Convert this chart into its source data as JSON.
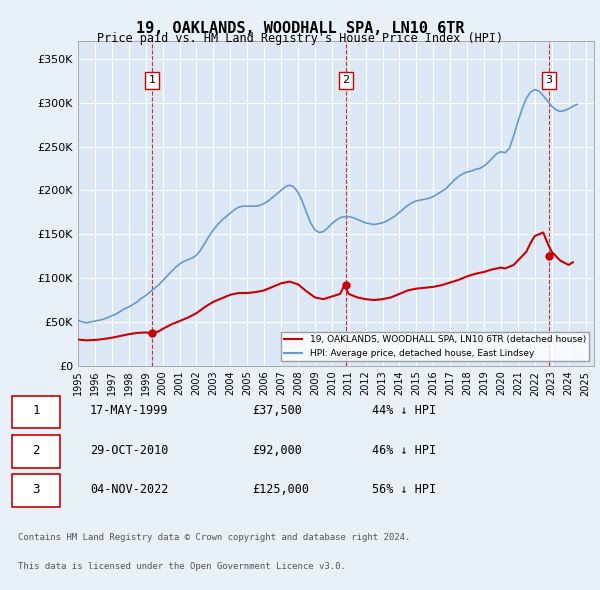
{
  "title": "19, OAKLANDS, WOODHALL SPA, LN10 6TR",
  "subtitle": "Price paid vs. HM Land Registry's House Price Index (HPI)",
  "background_color": "#e8f0f8",
  "plot_background": "#dce8f5",
  "legend_label_red": "19, OAKLANDS, WOODHALL SPA, LN10 6TR (detached house)",
  "legend_label_blue": "HPI: Average price, detached house, East Lindsey",
  "footer_line1": "Contains HM Land Registry data © Crown copyright and database right 2024.",
  "footer_line2": "This data is licensed under the Open Government Licence v3.0.",
  "table_rows": [
    {
      "num": 1,
      "date": "17-MAY-1999",
      "price": "£37,500",
      "pct": "44% ↓ HPI"
    },
    {
      "num": 2,
      "date": "29-OCT-2010",
      "price": "£92,000",
      "pct": "46% ↓ HPI"
    },
    {
      "num": 3,
      "date": "04-NOV-2022",
      "price": "£125,000",
      "pct": "56% ↓ HPI"
    }
  ],
  "sale_dates": [
    1999.38,
    2010.83,
    2022.84
  ],
  "sale_prices": [
    37500,
    92000,
    125000
  ],
  "sale_labels": [
    "1",
    "2",
    "3"
  ],
  "ylim": [
    0,
    370000
  ],
  "xlim_start": 1995.0,
  "xlim_end": 2025.5,
  "yticks": [
    0,
    50000,
    100000,
    150000,
    200000,
    250000,
    300000,
    350000
  ],
  "ytick_labels": [
    "£0",
    "£50K",
    "£100K",
    "£150K",
    "£200K",
    "£250K",
    "£300K",
    "£350K"
  ],
  "xticks": [
    1995,
    1996,
    1997,
    1998,
    1999,
    2000,
    2001,
    2002,
    2003,
    2004,
    2005,
    2006,
    2007,
    2008,
    2009,
    2010,
    2011,
    2012,
    2013,
    2014,
    2015,
    2016,
    2017,
    2018,
    2019,
    2020,
    2021,
    2022,
    2023,
    2024,
    2025
  ],
  "red_line_color": "#cc0000",
  "blue_line_color": "#6699cc",
  "vline_color": "#cc0000",
  "hpi_data": {
    "years": [
      1995.0,
      1995.25,
      1995.5,
      1995.75,
      1996.0,
      1996.25,
      1996.5,
      1996.75,
      1997.0,
      1997.25,
      1997.5,
      1997.75,
      1998.0,
      1998.25,
      1998.5,
      1998.75,
      1999.0,
      1999.25,
      1999.5,
      1999.75,
      2000.0,
      2000.25,
      2000.5,
      2000.75,
      2001.0,
      2001.25,
      2001.5,
      2001.75,
      2002.0,
      2002.25,
      2002.5,
      2002.75,
      2003.0,
      2003.25,
      2003.5,
      2003.75,
      2004.0,
      2004.25,
      2004.5,
      2004.75,
      2005.0,
      2005.25,
      2005.5,
      2005.75,
      2006.0,
      2006.25,
      2006.5,
      2006.75,
      2007.0,
      2007.25,
      2007.5,
      2007.75,
      2008.0,
      2008.25,
      2008.5,
      2008.75,
      2009.0,
      2009.25,
      2009.5,
      2009.75,
      2010.0,
      2010.25,
      2010.5,
      2010.75,
      2011.0,
      2011.25,
      2011.5,
      2011.75,
      2012.0,
      2012.25,
      2012.5,
      2012.75,
      2013.0,
      2013.25,
      2013.5,
      2013.75,
      2014.0,
      2014.25,
      2014.5,
      2014.75,
      2015.0,
      2015.25,
      2015.5,
      2015.75,
      2016.0,
      2016.25,
      2016.5,
      2016.75,
      2017.0,
      2017.25,
      2017.5,
      2017.75,
      2018.0,
      2018.25,
      2018.5,
      2018.75,
      2019.0,
      2019.25,
      2019.5,
      2019.75,
      2020.0,
      2020.25,
      2020.5,
      2020.75,
      2021.0,
      2021.25,
      2021.5,
      2021.75,
      2022.0,
      2022.25,
      2022.5,
      2022.75,
      2023.0,
      2023.25,
      2023.5,
      2023.75,
      2024.0,
      2024.25,
      2024.5
    ],
    "values": [
      52000,
      50000,
      49000,
      50000,
      51000,
      52000,
      53000,
      55000,
      57000,
      59000,
      62000,
      65000,
      67000,
      70000,
      73000,
      77000,
      80000,
      84000,
      88000,
      92000,
      97000,
      102000,
      107000,
      112000,
      116000,
      119000,
      121000,
      123000,
      126000,
      132000,
      140000,
      148000,
      155000,
      161000,
      166000,
      170000,
      174000,
      178000,
      181000,
      182000,
      182000,
      182000,
      182000,
      183000,
      185000,
      188000,
      192000,
      196000,
      200000,
      204000,
      206000,
      204000,
      198000,
      188000,
      175000,
      163000,
      155000,
      152000,
      153000,
      157000,
      162000,
      166000,
      169000,
      170000,
      170000,
      169000,
      167000,
      165000,
      163000,
      162000,
      161000,
      162000,
      163000,
      165000,
      168000,
      171000,
      175000,
      179000,
      183000,
      186000,
      188000,
      189000,
      190000,
      191000,
      193000,
      196000,
      199000,
      202000,
      207000,
      212000,
      216000,
      219000,
      221000,
      222000,
      224000,
      225000,
      228000,
      232000,
      237000,
      242000,
      244000,
      243000,
      248000,
      262000,
      278000,
      293000,
      305000,
      312000,
      315000,
      313000,
      308000,
      302000,
      296000,
      292000,
      290000,
      291000,
      293000,
      296000,
      298000
    ]
  },
  "property_hpi_data": {
    "years": [
      1995.0,
      1995.5,
      1996.0,
      1996.5,
      1997.0,
      1997.5,
      1998.0,
      1998.5,
      1999.0,
      1999.25,
      1999.75,
      2000.0,
      2000.5,
      2001.0,
      2001.5,
      2002.0,
      2002.5,
      2003.0,
      2003.5,
      2004.0,
      2004.5,
      2005.0,
      2005.5,
      2006.0,
      2006.5,
      2007.0,
      2007.5,
      2008.0,
      2008.5,
      2009.0,
      2009.5,
      2010.0,
      2010.5,
      2010.75,
      2011.0,
      2011.5,
      2012.0,
      2012.5,
      2013.0,
      2013.5,
      2014.0,
      2014.5,
      2015.0,
      2015.5,
      2016.0,
      2016.5,
      2017.0,
      2017.5,
      2018.0,
      2018.5,
      2019.0,
      2019.5,
      2020.0,
      2020.25,
      2020.75,
      2021.0,
      2021.5,
      2021.75,
      2022.0,
      2022.5,
      2022.75,
      2023.0,
      2023.5,
      2024.0,
      2024.25
    ],
    "values": [
      30000,
      29000,
      29500,
      30500,
      32000,
      34000,
      36000,
      37500,
      38000,
      37500,
      39000,
      42000,
      47000,
      51000,
      55000,
      60000,
      67000,
      73000,
      77000,
      81000,
      83000,
      83000,
      84000,
      86000,
      90000,
      94000,
      96000,
      93000,
      85000,
      78000,
      76000,
      79000,
      82000,
      92000,
      82000,
      78000,
      76000,
      75000,
      76000,
      78000,
      82000,
      86000,
      88000,
      89000,
      90000,
      92000,
      95000,
      98000,
      102000,
      105000,
      107000,
      110000,
      112000,
      111000,
      115000,
      120000,
      130000,
      140000,
      148000,
      152000,
      140000,
      130000,
      120000,
      115000,
      118000
    ]
  }
}
